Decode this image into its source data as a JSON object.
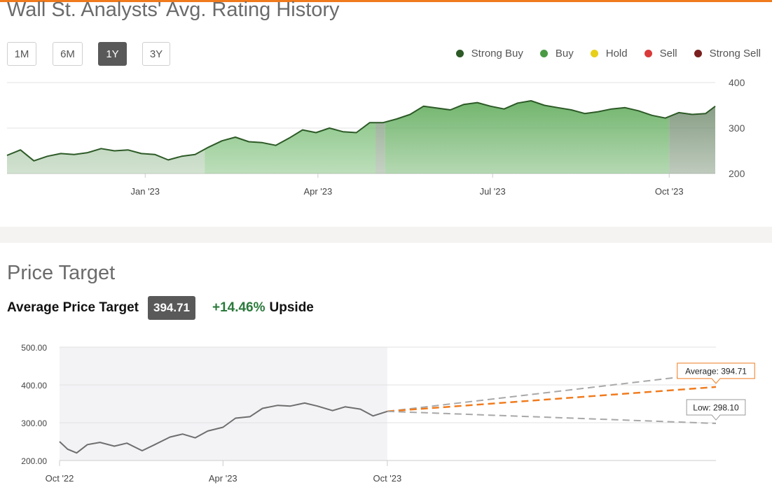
{
  "rating_history": {
    "title": "Wall St. Analysts' Avg. Rating History",
    "ranges": [
      {
        "label": "1M",
        "active": false
      },
      {
        "label": "6M",
        "active": false
      },
      {
        "label": "1Y",
        "active": true
      },
      {
        "label": "3Y",
        "active": false
      }
    ],
    "legend": [
      {
        "label": "Strong Buy",
        "color": "#2d5a27",
        "icon": "legend-dot"
      },
      {
        "label": "Buy",
        "color": "#4a9a45",
        "icon": "legend-dot"
      },
      {
        "label": "Hold",
        "color": "#e8cf1a",
        "icon": "legend-dot"
      },
      {
        "label": "Sell",
        "color": "#d93a3a",
        "icon": "legend-dot"
      },
      {
        "label": "Strong Sell",
        "color": "#7a1f1f",
        "icon": "legend-dot"
      }
    ]
  },
  "price_target": {
    "title": "Price Target",
    "average_label": "Average Price Target",
    "average_value": "394.71",
    "upside_pct": "+14.46%",
    "upside_word": "Upside",
    "average_tooltip": "Average: 394.71",
    "low_tooltip": "Low: 298.10"
  },
  "chart_data": [
    {
      "type": "area",
      "name": "rating-history",
      "x_ticks": [
        "Jan '23",
        "Apr '23",
        "Jul '23",
        "Oct '23"
      ],
      "x_tick_dates": [
        "2023-01-01",
        "2023-04-01",
        "2023-07-01",
        "2023-10-01"
      ],
      "xlim": [
        "2022-10-21",
        "2023-10-25"
      ],
      "y_ticks": [
        400,
        300,
        200
      ],
      "ylim": [
        200,
        400
      ],
      "grid": true,
      "rating_bands": [
        {
          "start": "2022-10-21",
          "end": "2023-02-01",
          "rating": "Strong Buy/Buy mix",
          "color": "#9bbf98"
        },
        {
          "start": "2023-02-01",
          "end": "2023-05-01",
          "rating": "Buy",
          "color": "#6cb768"
        },
        {
          "start": "2023-05-01",
          "end": "2023-05-06",
          "rating": "Strong Buy/Buy mix",
          "color": "#7f9a7c"
        },
        {
          "start": "2023-05-06",
          "end": "2023-10-01",
          "rating": "Buy",
          "color": "#5aa955"
        },
        {
          "start": "2023-10-01",
          "end": "2023-10-25",
          "rating": "Strong Buy/Buy mix",
          "color": "#6f8a6c"
        }
      ],
      "price": {
        "x": [
          "2022-10-21",
          "2022-10-28",
          "2022-11-04",
          "2022-11-11",
          "2022-11-18",
          "2022-11-25",
          "2022-12-02",
          "2022-12-09",
          "2022-12-16",
          "2022-12-23",
          "2022-12-30",
          "2023-01-06",
          "2023-01-13",
          "2023-01-20",
          "2023-01-27",
          "2023-02-03",
          "2023-02-10",
          "2023-02-17",
          "2023-02-24",
          "2023-03-03",
          "2023-03-10",
          "2023-03-17",
          "2023-03-24",
          "2023-03-31",
          "2023-04-07",
          "2023-04-14",
          "2023-04-21",
          "2023-04-28",
          "2023-05-05",
          "2023-05-12",
          "2023-05-19",
          "2023-05-26",
          "2023-06-02",
          "2023-06-09",
          "2023-06-16",
          "2023-06-23",
          "2023-06-30",
          "2023-07-07",
          "2023-07-14",
          "2023-07-21",
          "2023-07-28",
          "2023-08-04",
          "2023-08-11",
          "2023-08-18",
          "2023-08-25",
          "2023-09-01",
          "2023-09-08",
          "2023-09-15",
          "2023-09-22",
          "2023-09-29",
          "2023-10-06",
          "2023-10-13",
          "2023-10-20",
          "2023-10-25"
        ],
        "y": [
          240,
          252,
          228,
          238,
          244,
          242,
          246,
          255,
          250,
          252,
          244,
          242,
          230,
          238,
          242,
          258,
          272,
          280,
          270,
          268,
          262,
          278,
          296,
          290,
          300,
          292,
          290,
          312,
          312,
          320,
          330,
          348,
          344,
          340,
          352,
          356,
          348,
          342,
          355,
          360,
          350,
          345,
          340,
          332,
          336,
          342,
          345,
          338,
          328,
          322,
          334,
          330,
          332,
          348
        ]
      }
    },
    {
      "type": "line",
      "name": "price-target",
      "x_ticks": [
        "Oct '22",
        "Apr '23",
        "Oct '23"
      ],
      "x_tick_dates": [
        "2022-10-01",
        "2023-04-01",
        "2023-10-01"
      ],
      "xlim": [
        "2022-10-01",
        "2024-10-01"
      ],
      "y_ticks": [
        "500.00",
        "400.00",
        "300.00",
        "200.00"
      ],
      "ylim": [
        200,
        500
      ],
      "grid": true,
      "history": {
        "x": [
          "2022-10-01",
          "2022-10-10",
          "2022-10-20",
          "2022-11-01",
          "2022-11-15",
          "2022-12-01",
          "2022-12-15",
          "2023-01-01",
          "2023-01-15",
          "2023-02-01",
          "2023-02-15",
          "2023-03-01",
          "2023-03-15",
          "2023-04-01",
          "2023-04-15",
          "2023-05-01",
          "2023-05-15",
          "2023-06-01",
          "2023-06-15",
          "2023-07-01",
          "2023-07-15",
          "2023-08-01",
          "2023-08-15",
          "2023-09-01",
          "2023-09-15",
          "2023-10-01"
        ],
        "y": [
          250,
          230,
          220,
          242,
          248,
          238,
          246,
          226,
          242,
          262,
          270,
          260,
          278,
          288,
          312,
          316,
          338,
          346,
          344,
          352,
          344,
          332,
          342,
          336,
          318,
          330
        ]
      },
      "forecast": [
        {
          "name": "High",
          "x": [
            "2023-10-01",
            "2024-10-01"
          ],
          "y": [
            330,
            432
          ],
          "color": "#a8a8a8",
          "dash": true
        },
        {
          "name": "Average",
          "x": [
            "2023-10-01",
            "2024-10-01"
          ],
          "y": [
            330,
            394.71
          ],
          "color": "#f07b1d",
          "dash": true
        },
        {
          "name": "Low",
          "x": [
            "2023-10-01",
            "2024-10-01"
          ],
          "y": [
            330,
            298.1
          ],
          "color": "#a8a8a8",
          "dash": true
        }
      ]
    }
  ]
}
